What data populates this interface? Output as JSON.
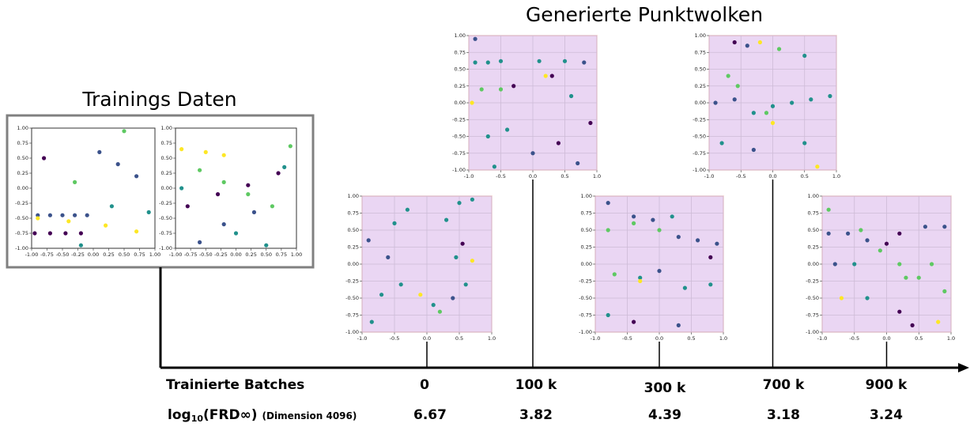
{
  "title": "Generierte Punktwolken",
  "training": {
    "title": "Trainings Daten",
    "xticks": [
      {
        "value": -1,
        "label": "-1.00"
      },
      {
        "value": -0.75,
        "label": "-0.75"
      },
      {
        "value": -0.5,
        "label": "-0.50"
      },
      {
        "value": -0.25,
        "label": "-0.25"
      },
      {
        "value": 0,
        "label": "0.00"
      },
      {
        "value": 0.25,
        "label": "0.25"
      },
      {
        "value": 0.5,
        "label": "0.50"
      },
      {
        "value": 0.75,
        "label": "0.75"
      },
      {
        "value": 1,
        "label": "1.00"
      }
    ],
    "yticks": [
      {
        "value": -1,
        "label": "-1.00"
      },
      {
        "value": -0.75,
        "label": "-0.75"
      },
      {
        "value": -0.5,
        "label": "-0.50"
      },
      {
        "value": -0.25,
        "label": "-0.25"
      },
      {
        "value": 0,
        "label": "0.00"
      },
      {
        "value": 0.25,
        "label": "0.25"
      },
      {
        "value": 0.5,
        "label": "0.50"
      },
      {
        "value": 0.75,
        "label": "0.75"
      },
      {
        "value": 1,
        "label": "1.00"
      }
    ],
    "plots": [
      {
        "points": [
          [
            -0.9,
            -0.45,
            "#3b528b"
          ],
          [
            -0.7,
            -0.45,
            "#3b528b"
          ],
          [
            -0.5,
            -0.45,
            "#3b528b"
          ],
          [
            -0.3,
            -0.45,
            "#3b528b"
          ],
          [
            -0.1,
            -0.45,
            "#3b528b"
          ],
          [
            -0.95,
            -0.75,
            "#440154"
          ],
          [
            -0.7,
            -0.75,
            "#440154"
          ],
          [
            -0.45,
            -0.75,
            "#440154"
          ],
          [
            -0.2,
            -0.75,
            "#440154"
          ],
          [
            -0.9,
            -0.5,
            "#fde725"
          ],
          [
            -0.4,
            -0.55,
            "#fde725"
          ],
          [
            0.2,
            -0.62,
            "#fde725"
          ],
          [
            0.7,
            -0.72,
            "#fde725"
          ],
          [
            0.1,
            0.6,
            "#3b528b"
          ],
          [
            0.4,
            0.4,
            "#3b528b"
          ],
          [
            0.7,
            0.2,
            "#3b528b"
          ],
          [
            -0.3,
            0.1,
            "#5ec962"
          ],
          [
            0.3,
            -0.3,
            "#21918c"
          ],
          [
            -0.2,
            -0.95,
            "#21918c"
          ],
          [
            0.9,
            -0.4,
            "#21918c"
          ],
          [
            -0.8,
            0.5,
            "#440154"
          ],
          [
            0.5,
            0.95,
            "#5ec962"
          ]
        ]
      },
      {
        "points": [
          [
            -0.9,
            0.65,
            "#fde725"
          ],
          [
            -0.5,
            0.6,
            "#fde725"
          ],
          [
            -0.2,
            0.55,
            "#fde725"
          ],
          [
            -0.6,
            0.3,
            "#5ec962"
          ],
          [
            -0.2,
            0.1,
            "#5ec962"
          ],
          [
            0.2,
            -0.1,
            "#5ec962"
          ],
          [
            0.6,
            -0.3,
            "#5ec962"
          ],
          [
            -0.8,
            -0.3,
            "#440154"
          ],
          [
            -0.3,
            -0.1,
            "#440154"
          ],
          [
            0.2,
            0.05,
            "#440154"
          ],
          [
            0.7,
            0.25,
            "#440154"
          ],
          [
            -0.6,
            -0.9,
            "#3b528b"
          ],
          [
            -0.2,
            -0.6,
            "#3b528b"
          ],
          [
            0.3,
            -0.4,
            "#3b528b"
          ],
          [
            0.8,
            0.35,
            "#21918c"
          ],
          [
            -0.9,
            0.0,
            "#21918c"
          ],
          [
            0.0,
            -0.75,
            "#21918c"
          ],
          [
            0.5,
            -0.95,
            "#21918c"
          ],
          [
            0.9,
            0.7,
            "#5ec962"
          ]
        ]
      }
    ]
  },
  "generated_ticks": {
    "xticks": [
      {
        "value": -1,
        "label": "-1.0"
      },
      {
        "value": -0.5,
        "label": "-0.5"
      },
      {
        "value": 0,
        "label": "0.0"
      },
      {
        "value": 0.5,
        "label": "0.5"
      },
      {
        "value": 1,
        "label": "1.0"
      }
    ],
    "yticks": [
      {
        "value": -1,
        "label": "-1.00"
      },
      {
        "value": -0.75,
        "label": "-0.75"
      },
      {
        "value": -0.5,
        "label": "-0.50"
      },
      {
        "value": -0.25,
        "label": "-0.25"
      },
      {
        "value": 0,
        "label": "0.00"
      },
      {
        "value": 0.25,
        "label": "0.25"
      },
      {
        "value": 0.5,
        "label": "0.50"
      },
      {
        "value": 0.75,
        "label": "0.75"
      },
      {
        "value": 1,
        "label": "1.00"
      }
    ],
    "grid": true
  },
  "axis": {
    "label": "Trainierte Batches",
    "metric_prefix": "log",
    "metric_subscript": "10",
    "metric_name": "(FRD∞)",
    "metric_note": "(Dimension 4096)"
  },
  "stages": [
    {
      "batches": "0",
      "score": "6.67",
      "points": [
        [
          -0.9,
          0.35,
          "#3b528b"
        ],
        [
          -0.6,
          0.1,
          "#3b528b"
        ],
        [
          -0.5,
          0.6,
          "#21918c"
        ],
        [
          -0.3,
          0.8,
          "#21918c"
        ],
        [
          0.3,
          0.65,
          "#21918c"
        ],
        [
          0.5,
          0.9,
          "#21918c"
        ],
        [
          0.7,
          0.95,
          "#21918c"
        ],
        [
          0.55,
          0.3,
          "#440154"
        ],
        [
          0.45,
          0.1,
          "#21918c"
        ],
        [
          -0.4,
          -0.3,
          "#21918c"
        ],
        [
          -0.7,
          -0.45,
          "#21918c"
        ],
        [
          -0.1,
          -0.45,
          "#fde725"
        ],
        [
          0.1,
          -0.6,
          "#21918c"
        ],
        [
          0.4,
          -0.5,
          "#3b528b"
        ],
        [
          0.6,
          -0.3,
          "#21918c"
        ],
        [
          -0.85,
          -0.85,
          "#21918c"
        ],
        [
          0.7,
          0.05,
          "#fde725"
        ],
        [
          0.2,
          -0.7,
          "#5ec962"
        ]
      ]
    },
    {
      "batches": "100 k",
      "score": "3.82",
      "points": [
        [
          -0.9,
          0.95,
          "#3b528b"
        ],
        [
          -0.9,
          0.6,
          "#21918c"
        ],
        [
          -0.7,
          0.6,
          "#21918c"
        ],
        [
          -0.5,
          0.62,
          "#21918c"
        ],
        [
          0.1,
          0.62,
          "#21918c"
        ],
        [
          0.5,
          0.62,
          "#21918c"
        ],
        [
          0.8,
          0.6,
          "#3b528b"
        ],
        [
          -0.8,
          0.2,
          "#5ec962"
        ],
        [
          -0.5,
          0.2,
          "#5ec962"
        ],
        [
          -0.95,
          0.0,
          "#fde725"
        ],
        [
          -0.3,
          0.25,
          "#440154"
        ],
        [
          0.3,
          0.4,
          "#440154"
        ],
        [
          0.9,
          -0.3,
          "#440154"
        ],
        [
          -0.7,
          -0.5,
          "#21918c"
        ],
        [
          -0.4,
          -0.4,
          "#21918c"
        ],
        [
          0.0,
          -0.75,
          "#3b528b"
        ],
        [
          0.4,
          -0.6,
          "#440154"
        ],
        [
          0.7,
          -0.9,
          "#3b528b"
        ],
        [
          -0.6,
          -0.95,
          "#21918c"
        ],
        [
          0.6,
          0.1,
          "#21918c"
        ],
        [
          0.2,
          0.4,
          "#fde725"
        ]
      ]
    },
    {
      "batches": "300 k",
      "score": "4.39",
      "points": [
        [
          -0.8,
          0.9,
          "#3b528b"
        ],
        [
          -0.4,
          0.7,
          "#3b528b"
        ],
        [
          -0.1,
          0.65,
          "#3b528b"
        ],
        [
          0.2,
          0.7,
          "#21918c"
        ],
        [
          -0.8,
          0.5,
          "#5ec962"
        ],
        [
          -0.4,
          0.6,
          "#5ec962"
        ],
        [
          0.0,
          0.5,
          "#5ec962"
        ],
        [
          0.3,
          0.4,
          "#3b528b"
        ],
        [
          0.6,
          0.35,
          "#3b528b"
        ],
        [
          0.9,
          0.3,
          "#3b528b"
        ],
        [
          -0.7,
          -0.15,
          "#5ec962"
        ],
        [
          -0.3,
          -0.2,
          "#21918c"
        ],
        [
          0.0,
          -0.1,
          "#3b528b"
        ],
        [
          0.4,
          -0.35,
          "#21918c"
        ],
        [
          0.8,
          -0.3,
          "#21918c"
        ],
        [
          -0.3,
          -0.25,
          "#fde725"
        ],
        [
          -0.8,
          -0.75,
          "#21918c"
        ],
        [
          -0.4,
          -0.85,
          "#440154"
        ],
        [
          0.3,
          -0.9,
          "#3b528b"
        ],
        [
          0.8,
          0.1,
          "#440154"
        ]
      ]
    },
    {
      "batches": "700 k",
      "score": "3.18",
      "points": [
        [
          -0.6,
          0.9,
          "#440154"
        ],
        [
          -0.4,
          0.85,
          "#3b528b"
        ],
        [
          -0.2,
          0.9,
          "#fde725"
        ],
        [
          0.1,
          0.8,
          "#5ec962"
        ],
        [
          0.5,
          0.7,
          "#21918c"
        ],
        [
          -0.7,
          0.4,
          "#5ec962"
        ],
        [
          -0.55,
          0.25,
          "#5ec962"
        ],
        [
          -0.9,
          0.0,
          "#3b528b"
        ],
        [
          -0.6,
          0.05,
          "#3b528b"
        ],
        [
          -0.3,
          -0.15,
          "#21918c"
        ],
        [
          0.0,
          -0.05,
          "#21918c"
        ],
        [
          0.3,
          0.0,
          "#21918c"
        ],
        [
          0.6,
          0.05,
          "#21918c"
        ],
        [
          0.9,
          0.1,
          "#21918c"
        ],
        [
          -0.1,
          -0.15,
          "#5ec962"
        ],
        [
          0.0,
          -0.3,
          "#fde725"
        ],
        [
          -0.3,
          -0.7,
          "#3b528b"
        ],
        [
          0.5,
          -0.6,
          "#21918c"
        ],
        [
          0.7,
          -0.95,
          "#fde725"
        ],
        [
          -0.8,
          -0.6,
          "#21918c"
        ]
      ]
    },
    {
      "batches": "900 k",
      "score": "3.24",
      "points": [
        [
          -0.9,
          0.45,
          "#3b528b"
        ],
        [
          -0.6,
          0.45,
          "#3b528b"
        ],
        [
          -0.3,
          0.35,
          "#3b528b"
        ],
        [
          0.0,
          0.3,
          "#440154"
        ],
        [
          0.2,
          0.45,
          "#440154"
        ],
        [
          0.6,
          0.55,
          "#3b528b"
        ],
        [
          0.9,
          0.55,
          "#3b528b"
        ],
        [
          -0.4,
          0.5,
          "#5ec962"
        ],
        [
          -0.1,
          0.2,
          "#5ec962"
        ],
        [
          0.2,
          0.0,
          "#5ec962"
        ],
        [
          0.5,
          -0.2,
          "#5ec962"
        ],
        [
          0.9,
          -0.4,
          "#5ec962"
        ],
        [
          0.3,
          -0.2,
          "#5ec962"
        ],
        [
          0.7,
          0.0,
          "#5ec962"
        ],
        [
          -0.8,
          0.0,
          "#3b528b"
        ],
        [
          -0.5,
          0.0,
          "#21918c"
        ],
        [
          -0.7,
          -0.5,
          "#fde725"
        ],
        [
          -0.3,
          -0.5,
          "#21918c"
        ],
        [
          0.2,
          -0.7,
          "#440154"
        ],
        [
          0.4,
          -0.9,
          "#440154"
        ],
        [
          0.8,
          -0.85,
          "#fde725"
        ],
        [
          -0.9,
          0.8,
          "#5ec962"
        ]
      ]
    }
  ]
}
